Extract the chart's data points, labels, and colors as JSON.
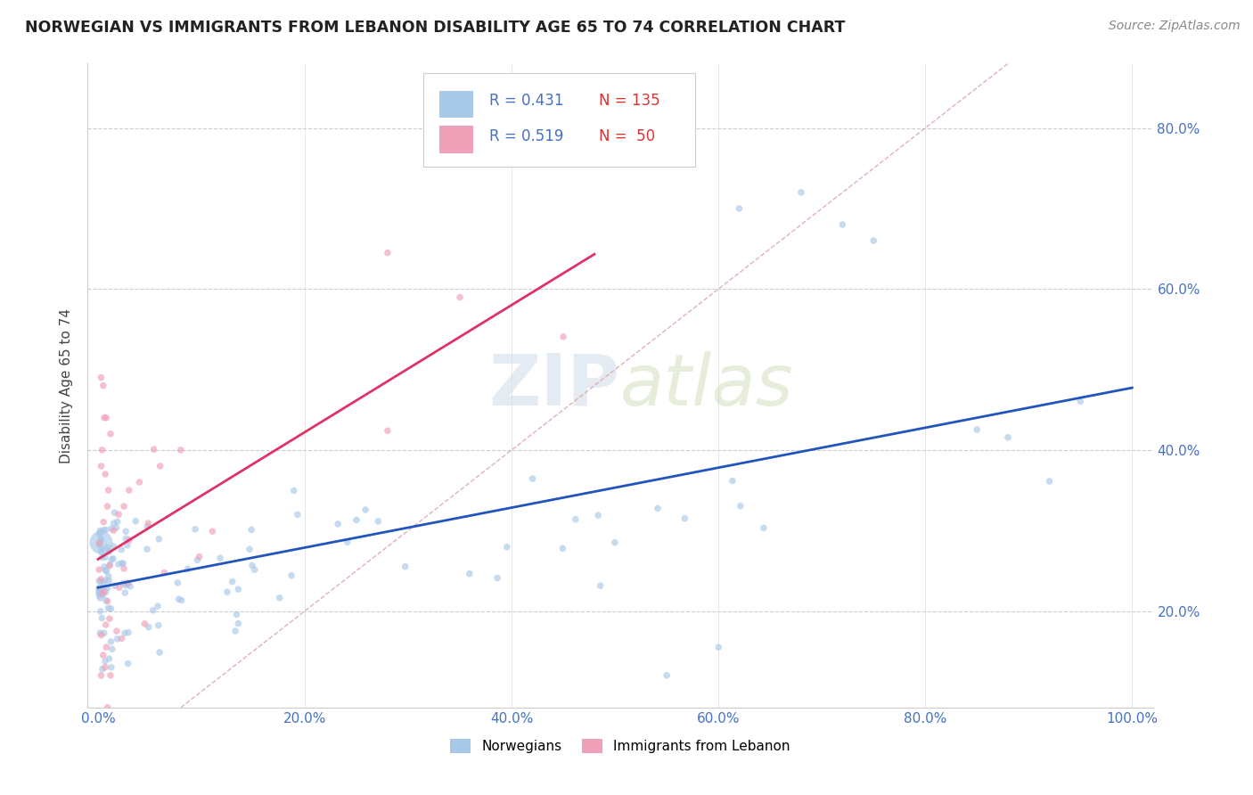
{
  "title": "NORWEGIAN VS IMMIGRANTS FROM LEBANON DISABILITY AGE 65 TO 74 CORRELATION CHART",
  "source": "Source: ZipAtlas.com",
  "ylabel": "Disability Age 65 to 74",
  "norwegian_R": 0.431,
  "norwegian_N": 135,
  "lebanon_R": 0.519,
  "lebanon_N": 50,
  "norwegian_color": "#a8c8e8",
  "lebanon_color": "#f0a0b8",
  "norwegian_line_color": "#2255bb",
  "lebanon_line_color": "#dd3366",
  "diagonal_color": "#ddaaaa",
  "watermark": "ZIPatlas",
  "legend_norwegian": "Norwegians",
  "legend_lebanon": "Immigrants from Lebanon",
  "dot_size_small": 30,
  "dot_size_large": 350,
  "alpha": 0.65
}
